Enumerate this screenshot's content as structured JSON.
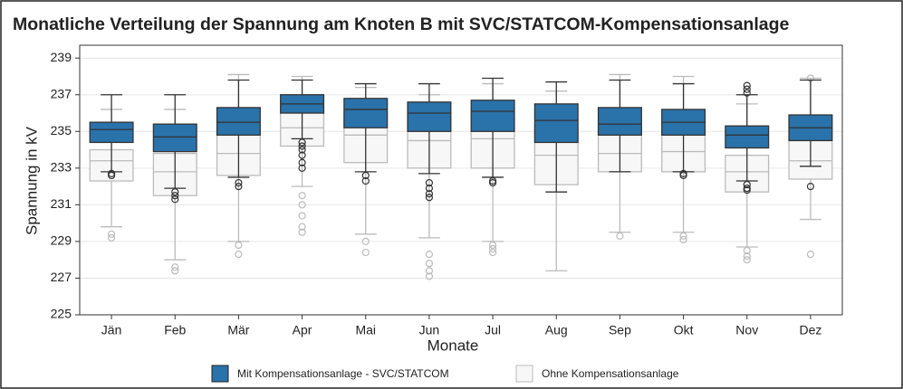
{
  "chart_data": {
    "type": "box",
    "title": "Monatliche Verteilung der Spannung am Knoten B mit SVC/STATCOM-Kompensationsanlage",
    "x_label": "Monate",
    "y_label": "Spannung in kV",
    "categories": [
      "Jän",
      "Feb",
      "Mär",
      "Apr",
      "Mai",
      "Jun",
      "Jul",
      "Aug",
      "Sep",
      "Okt",
      "Nov",
      "Dez"
    ],
    "ylim": [
      225,
      239.7
    ],
    "yticks": [
      225,
      227,
      229,
      231,
      233,
      235,
      237,
      239
    ],
    "grid": true,
    "legend": "bottom",
    "series": [
      {
        "name": "Mit Kompensationsanlage - SVC/STATCOM",
        "color": "#2a72aa",
        "edge": "#333333",
        "boxes": [
          {
            "low": 232.8,
            "q1": 234.4,
            "median": 235.1,
            "q3": 235.5,
            "high": 237.0,
            "outliers": [
              232.6,
              232.7
            ]
          },
          {
            "low": 231.9,
            "q1": 233.9,
            "median": 234.7,
            "q3": 235.4,
            "high": 237.0,
            "outliers": [
              231.7,
              231.5,
              231.3
            ]
          },
          {
            "low": 232.5,
            "q1": 234.8,
            "median": 235.5,
            "q3": 236.3,
            "high": 237.8,
            "outliers": [
              232.2,
              232.0
            ]
          },
          {
            "low": 234.6,
            "q1": 236.0,
            "median": 236.5,
            "q3": 237.0,
            "high": 237.8,
            "outliers": [
              234.4,
              234.2,
              234.0,
              233.7,
              233.3,
              233.0
            ]
          },
          {
            "low": 232.8,
            "q1": 235.2,
            "median": 236.2,
            "q3": 236.8,
            "high": 237.6,
            "outliers": [
              232.6,
              232.3
            ]
          },
          {
            "low": 232.7,
            "q1": 235.0,
            "median": 236.0,
            "q3": 236.6,
            "high": 237.6,
            "outliers": [
              232.2,
              231.9,
              231.6,
              231.4
            ]
          },
          {
            "low": 232.5,
            "q1": 235.0,
            "median": 236.1,
            "q3": 236.7,
            "high": 237.9,
            "outliers": [
              232.3,
              232.2
            ]
          },
          {
            "low": 231.7,
            "q1": 234.4,
            "median": 235.6,
            "q3": 236.5,
            "high": 237.7,
            "outliers": []
          },
          {
            "low": 232.8,
            "q1": 234.8,
            "median": 235.4,
            "q3": 236.3,
            "high": 237.8,
            "outliers": []
          },
          {
            "low": 232.8,
            "q1": 234.8,
            "median": 235.5,
            "q3": 236.2,
            "high": 237.6,
            "outliers": [
              232.7,
              232.6
            ]
          },
          {
            "low": 232.3,
            "q1": 234.1,
            "median": 234.8,
            "q3": 235.3,
            "high": 237.0,
            "outliers": [
              237.5,
              237.3,
              237.1,
              232.1,
              231.9,
              231.8
            ]
          },
          {
            "low": 233.1,
            "q1": 234.5,
            "median": 235.2,
            "q3": 235.9,
            "high": 237.8,
            "outliers": [
              232.0
            ]
          }
        ]
      },
      {
        "name": "Ohne Kompensationsanlage",
        "color": "#f7f7f7",
        "edge": "#bbbbbb",
        "boxes": [
          {
            "low": 229.8,
            "q1": 232.3,
            "median": 233.4,
            "q3": 234.0,
            "high": 236.2,
            "outliers": [
              229.4,
              229.2
            ]
          },
          {
            "low": 228.0,
            "q1": 231.5,
            "median": 232.8,
            "q3": 233.8,
            "high": 236.2,
            "outliers": [
              227.6,
              227.4
            ]
          },
          {
            "low": 229.0,
            "q1": 232.6,
            "median": 233.8,
            "q3": 235.0,
            "high": 238.1,
            "outliers": [
              228.8,
              228.3
            ]
          },
          {
            "low": 232.0,
            "q1": 234.2,
            "median": 235.2,
            "q3": 236.3,
            "high": 238.0,
            "outliers": [
              231.5,
              231.0,
              230.4,
              229.8,
              229.5
            ]
          },
          {
            "low": 229.4,
            "q1": 233.3,
            "median": 234.8,
            "q3": 236.0,
            "high": 237.4,
            "outliers": [
              229.0,
              228.4
            ]
          },
          {
            "low": 229.2,
            "q1": 233.0,
            "median": 234.5,
            "q3": 235.6,
            "high": 237.0,
            "outliers": [
              228.3,
              227.8,
              227.4,
              227.1
            ]
          },
          {
            "low": 229.0,
            "q1": 233.0,
            "median": 234.6,
            "q3": 235.7,
            "high": 237.6,
            "outliers": [
              228.8,
              228.6,
              228.4
            ]
          },
          {
            "low": 227.4,
            "q1": 232.1,
            "median": 233.7,
            "q3": 235.3,
            "high": 237.2,
            "outliers": []
          },
          {
            "low": 229.5,
            "q1": 232.8,
            "median": 233.8,
            "q3": 235.1,
            "high": 238.1,
            "outliers": [
              229.3
            ]
          },
          {
            "low": 229.5,
            "q1": 232.8,
            "median": 233.9,
            "q3": 235.0,
            "high": 238.0,
            "outliers": [
              229.3,
              229.1
            ]
          },
          {
            "low": 228.7,
            "q1": 231.7,
            "median": 232.8,
            "q3": 233.7,
            "high": 236.5,
            "outliers": [
              228.5,
              228.2,
              228.0
            ]
          },
          {
            "low": 230.2,
            "q1": 232.4,
            "median": 233.4,
            "q3": 234.5,
            "high": 237.9,
            "outliers": [
              228.3,
              237.9
            ]
          }
        ]
      }
    ]
  }
}
